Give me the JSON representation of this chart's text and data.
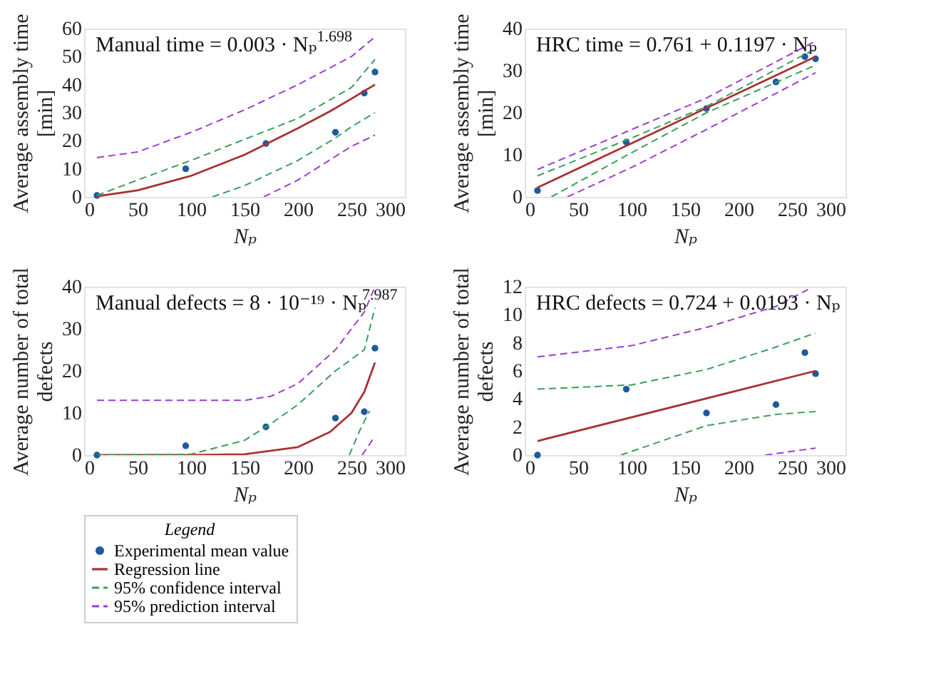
{
  "chart_data": [
    {
      "type": "line",
      "title": "Manual time = 0.003 · Nₚ$^{1.698}$",
      "xlabel": "Nₚ",
      "ylabel": "Average assembly time [min]",
      "xlim": [
        0,
        300
      ],
      "xticks": [
        0,
        50,
        100,
        150,
        200,
        250,
        300
      ],
      "ylim": [
        0,
        60
      ],
      "yticks": [
        0,
        10,
        20,
        30,
        40,
        50,
        60
      ],
      "legend": "bottom",
      "series": [
        {
          "name": "Experimental mean value",
          "type": "scatter",
          "marker": "circle",
          "color": "#1f5a9e",
          "x": [
            12,
            95,
            170,
            235,
            262,
            272
          ],
          "values": [
            0.5,
            10,
            19,
            23,
            37,
            44.5
          ]
        },
        {
          "name": "Regression line",
          "line_style": "solid",
          "color": "#a83232",
          "x": [
            12,
            50,
            100,
            150,
            200,
            230,
            250,
            272
          ],
          "values": [
            0.2,
            2.3,
            7.5,
            15,
            24.5,
            30.5,
            35,
            40
          ]
        },
        {
          "name": "95% confidence interval",
          "line_style": "dashed",
          "color": "#3aa05a",
          "x": [
            12,
            50,
            100,
            150,
            200,
            250,
            272
          ],
          "values": [
            0.5,
            6,
            13,
            20.5,
            28,
            39,
            49
          ]
        },
        {
          "line_style": "dashed",
          "color": "#3aa05a",
          "x": [
            120,
            150,
            200,
            235,
            250,
            272
          ],
          "values": [
            0,
            4,
            13,
            21,
            25,
            30
          ]
        },
        {
          "name": "95% prediction interval",
          "line_style": "dashed",
          "color": "#9b3fd0",
          "x": [
            12,
            50,
            100,
            150,
            200,
            250,
            272
          ],
          "values": [
            14,
            16,
            23,
            31,
            40,
            50,
            57
          ]
        },
        {
          "line_style": "dashed",
          "color": "#9b3fd0",
          "x": [
            168,
            200,
            250,
            272
          ],
          "values": [
            0,
            6,
            18,
            22
          ]
        }
      ]
    },
    {
      "type": "line",
      "title": "HRC time = 0.761 + 0.1197 · Nₚ",
      "xlabel": "Nₚ",
      "ylabel": "Average assembly time [min]",
      "xlim": [
        0,
        300
      ],
      "xticks": [
        0,
        50,
        100,
        150,
        200,
        250,
        300
      ],
      "ylim": [
        0,
        40
      ],
      "yticks": [
        0,
        10,
        20,
        30,
        40
      ],
      "legend": "bottom",
      "series": [
        {
          "name": "Experimental mean value",
          "type": "scatter",
          "marker": "circle",
          "color": "#1f5a9e",
          "x": [
            12,
            95,
            170,
            235,
            262,
            272
          ],
          "values": [
            1.5,
            13,
            21,
            27.3,
            33.3,
            32.8
          ]
        },
        {
          "name": "Regression line",
          "line_style": "solid",
          "color": "#a83232",
          "x": [
            12,
            272
          ],
          "values": [
            2.2,
            33.3
          ]
        },
        {
          "name": "95% confidence interval",
          "line_style": "dashed",
          "color": "#3aa05a",
          "x": [
            12,
            100,
            170,
            272
          ],
          "values": [
            5,
            14,
            21.5,
            35.2
          ]
        },
        {
          "line_style": "dashed",
          "color": "#3aa05a",
          "x": [
            25,
            100,
            170,
            272
          ],
          "values": [
            0,
            10.5,
            20,
            31.3
          ]
        },
        {
          "name": "95% prediction interval",
          "line_style": "dashed",
          "color": "#9b3fd0",
          "x": [
            12,
            100,
            170,
            272
          ],
          "values": [
            6.5,
            16,
            23.5,
            37
          ]
        },
        {
          "line_style": "dashed",
          "color": "#9b3fd0",
          "x": [
            40,
            100,
            170,
            272
          ],
          "values": [
            0,
            7,
            16,
            29.5
          ]
        }
      ]
    },
    {
      "type": "line",
      "title": "Manual defects = 8 · 10⁻¹⁹ · Nₚ$^{7.987}$",
      "xlabel": "Nₚ",
      "ylabel": "Average number of total defects",
      "xlim": [
        0,
        300
      ],
      "xticks": [
        0,
        50,
        100,
        150,
        200,
        250,
        300
      ],
      "ylim": [
        0,
        40
      ],
      "yticks": [
        0,
        10,
        20,
        30,
        40
      ],
      "legend": "bottom",
      "series": [
        {
          "name": "Experimental mean value",
          "type": "scatter",
          "marker": "circle",
          "color": "#1f5a9e",
          "x": [
            12,
            95,
            170,
            235,
            262,
            272
          ],
          "values": [
            0,
            2.2,
            6.7,
            8.8,
            10.3,
            25.4
          ]
        },
        {
          "name": "Regression line",
          "line_style": "solid",
          "color": "#a83232",
          "x": [
            12,
            100,
            150,
            200,
            230,
            250,
            262,
            272
          ],
          "values": [
            0,
            0,
            0.2,
            1.9,
            5.5,
            10,
            15,
            22
          ]
        },
        {
          "name": "95% confidence interval",
          "line_style": "dashed",
          "color": "#3aa05a",
          "x": [
            12,
            100,
            150,
            175,
            200,
            235,
            262,
            272
          ],
          "values": [
            0,
            0.2,
            3.5,
            7.5,
            12,
            20,
            25,
            35
          ]
        },
        {
          "line_style": "dashed",
          "color": "#3aa05a",
          "x": [
            248,
            258,
            267
          ],
          "values": [
            0,
            6,
            10.5
          ]
        },
        {
          "name": "95% prediction interval",
          "line_style": "dashed",
          "color": "#9b3fd0",
          "x": [
            12,
            150,
            175,
            200,
            235,
            262,
            272
          ],
          "values": [
            13,
            13,
            14,
            17,
            25,
            34,
            40
          ]
        },
        {
          "line_style": "dashed",
          "color": "#9b3fd0",
          "x": [
            260,
            272
          ],
          "values": [
            0,
            4.5
          ]
        }
      ]
    },
    {
      "type": "line",
      "title": "HRC defects = 0.724 + 0.0193 · Nₚ",
      "xlabel": "Nₚ",
      "ylabel": "Average number of total defects",
      "xlim": [
        0,
        300
      ],
      "xticks": [
        0,
        50,
        100,
        150,
        200,
        250,
        300
      ],
      "ylim": [
        0,
        12
      ],
      "yticks": [
        0,
        2,
        4,
        6,
        8,
        10,
        12
      ],
      "legend": "bottom",
      "legend_title": "Legend",
      "series": [
        {
          "name": "Experimental mean value",
          "type": "scatter",
          "marker": "circle",
          "color": "#1f5a9e",
          "x": [
            12,
            95,
            170,
            235,
            262,
            272
          ],
          "values": [
            0,
            4.7,
            3,
            3.6,
            7.3,
            5.8
          ]
        },
        {
          "name": "Regression line",
          "line_style": "solid",
          "color": "#a83232",
          "x": [
            12,
            272
          ],
          "values": [
            1,
            6
          ]
        },
        {
          "name": "95% confidence interval",
          "line_style": "dashed",
          "color": "#3aa05a",
          "x": [
            12,
            100,
            170,
            235,
            272
          ],
          "values": [
            4.7,
            5,
            6.1,
            7.7,
            8.7
          ]
        },
        {
          "line_style": "dashed",
          "color": "#3aa05a",
          "x": [
            90,
            170,
            235,
            272
          ],
          "values": [
            0,
            2.1,
            2.9,
            3.1
          ]
        },
        {
          "name": "95% prediction interval",
          "line_style": "dashed",
          "color": "#9b3fd0",
          "x": [
            12,
            100,
            170,
            235,
            265
          ],
          "values": [
            7,
            7.8,
            9.1,
            10.6,
            11.8
          ]
        },
        {
          "line_style": "dashed",
          "color": "#9b3fd0",
          "x": [
            225,
            272
          ],
          "values": [
            0,
            0.5
          ]
        }
      ]
    }
  ]
}
